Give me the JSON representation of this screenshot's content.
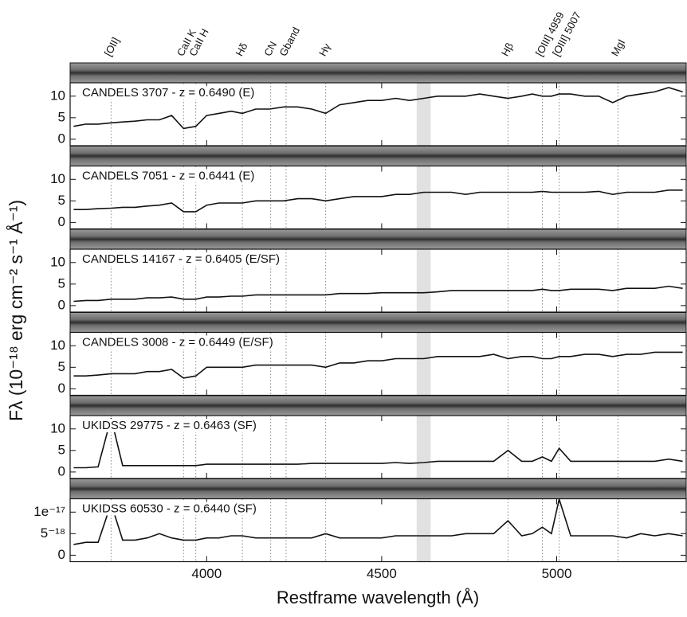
{
  "chart_data": {
    "type": "line",
    "xlabel": "Restframe wavelength (Å)",
    "ylabel": "Fλ (10⁻¹⁸ erg cm⁻² s⁻¹ Å⁻¹)",
    "xlim": [
      3610,
      5370
    ],
    "xticks": [
      4000,
      4500,
      5000
    ],
    "mask": [
      4600,
      4640
    ],
    "lines": [
      {
        "label": "[OII]",
        "wavelength": 3727
      },
      {
        "label": "CaII K",
        "wavelength": 3934
      },
      {
        "label": "CaII H",
        "wavelength": 3969
      },
      {
        "label": "Hδ",
        "wavelength": 4102
      },
      {
        "label": "CN",
        "wavelength": 4183
      },
      {
        "label": "Gband",
        "wavelength": 4227
      },
      {
        "label": "Hγ",
        "wavelength": 4340
      },
      {
        "label": "Hβ",
        "wavelength": 4861
      },
      {
        "label": "[OIII] 4959",
        "wavelength": 4959
      },
      {
        "label": "[OIII] 5007",
        "wavelength": 5007
      },
      {
        "label": "MgI",
        "wavelength": 5175
      }
    ],
    "x": [
      3620,
      3655,
      3690,
      3727,
      3760,
      3795,
      3830,
      3865,
      3900,
      3934,
      3969,
      4000,
      4035,
      4070,
      4102,
      4140,
      4180,
      4220,
      4260,
      4300,
      4340,
      4380,
      4420,
      4460,
      4500,
      4540,
      4580,
      4620,
      4660,
      4700,
      4740,
      4780,
      4820,
      4861,
      4900,
      4930,
      4959,
      4985,
      5007,
      5040,
      5080,
      5120,
      5160,
      5200,
      5240,
      5280,
      5320,
      5360
    ],
    "panels": [
      {
        "title": "CANDELS 3707 - z = 0.6490 (E)",
        "color": "#111111",
        "ylim": [
          -1.5,
          13.1
        ],
        "yticks": [
          0,
          5,
          10
        ],
        "values": [
          3,
          3.5,
          3.5,
          3.8,
          4,
          4.2,
          4.5,
          4.5,
          5.5,
          2.5,
          3,
          5.5,
          6,
          6.5,
          6,
          7,
          7,
          7.5,
          7.5,
          7,
          6,
          8,
          8.5,
          9,
          9,
          9.5,
          9,
          9.5,
          10,
          10,
          10,
          10.5,
          10,
          9.5,
          10,
          10.5,
          10,
          10,
          10.5,
          10.5,
          10,
          10,
          8.5,
          10,
          10.5,
          11,
          12,
          11
        ]
      },
      {
        "title": "CANDELS 7051 - z = 0.6441 (E)",
        "color": "#111111",
        "ylim": [
          -1.5,
          13.1
        ],
        "yticks": [
          0,
          5,
          10
        ],
        "values": [
          3,
          3,
          3.2,
          3.3,
          3.5,
          3.5,
          3.8,
          4,
          4.5,
          2.5,
          2.5,
          4,
          4.5,
          4.5,
          4.5,
          5,
          5,
          5,
          5.5,
          5.5,
          5,
          5.5,
          6,
          6,
          6,
          6.5,
          6.5,
          7,
          7,
          7,
          6.5,
          7,
          7,
          7,
          7,
          7,
          7.2,
          7,
          7,
          7,
          7,
          7.2,
          6.5,
          7,
          7,
          7,
          7.5,
          7.5
        ]
      },
      {
        "title": "CANDELS 14167 - z = 0.6405 (E/SF)",
        "color": "#111111",
        "ylim": [
          -1.5,
          13.1
        ],
        "yticks": [
          0,
          5,
          10
        ],
        "values": [
          1,
          1.2,
          1.2,
          1.5,
          1.5,
          1.5,
          1.8,
          1.8,
          2,
          1.5,
          1.5,
          2,
          2,
          2.2,
          2.2,
          2.5,
          2.5,
          2.5,
          2.5,
          2.5,
          2.5,
          2.8,
          2.8,
          2.8,
          3,
          3,
          3,
          3,
          3.2,
          3.5,
          3.5,
          3.5,
          3.5,
          3.5,
          3.5,
          3.5,
          3.8,
          3.5,
          3.5,
          3.8,
          3.8,
          3.8,
          3.5,
          4,
          4,
          4,
          4.5,
          4
        ]
      },
      {
        "title": "CANDELS 3008 - z = 0.6449 (E/SF)",
        "color": "#111111",
        "ylim": [
          -1.5,
          13.1
        ],
        "yticks": [
          0,
          5,
          10
        ],
        "values": [
          3,
          3,
          3.2,
          3.5,
          3.5,
          3.5,
          4,
          4,
          4.5,
          2.5,
          3,
          5,
          5,
          5,
          5,
          5.5,
          5.5,
          5.5,
          5.5,
          5.5,
          5,
          6,
          6,
          6.5,
          6.5,
          7,
          7,
          7,
          7.5,
          7.5,
          7.5,
          7.5,
          8,
          7,
          7.5,
          7.5,
          7,
          7,
          7.5,
          7.5,
          8,
          8,
          7.5,
          8,
          8,
          8.5,
          8.5,
          8.5
        ]
      },
      {
        "title": "UKIDSS 29775 - z = 0.6463 (SF)",
        "color": "#111111",
        "ylim": [
          -1.5,
          13.1
        ],
        "yticks": [
          0,
          5,
          10
        ],
        "values": [
          1,
          1,
          1.2,
          12.5,
          1.5,
          1.5,
          1.5,
          1.5,
          1.5,
          1.5,
          1.5,
          1.8,
          1.8,
          1.8,
          1.8,
          1.8,
          1.8,
          1.8,
          1.8,
          2,
          2,
          2,
          2,
          2,
          2,
          2.2,
          2,
          2.2,
          2.5,
          2.5,
          2.5,
          2.5,
          2.5,
          5,
          2.5,
          2.5,
          3.5,
          2.5,
          5.5,
          2.5,
          2.5,
          2.5,
          2.5,
          2.5,
          2.5,
          2.5,
          3,
          2.5
        ]
      },
      {
        "title": "UKIDSS 60530 - z = 0.6440 (SF)",
        "color": "#111111",
        "ylim": [
          -1.5e-18,
          1.31e-17
        ],
        "yticks": [
          0,
          {
            "value": 5e-18,
            "label": "5⁻¹⁸"
          },
          {
            "value": 1e-17,
            "label": "1e⁻¹⁷"
          }
        ],
        "values": [
          2.5e-18,
          3e-18,
          3e-18,
          1.2e-17,
          3.5e-18,
          3.5e-18,
          4e-18,
          5e-18,
          4e-18,
          3.5e-18,
          3.5e-18,
          4e-18,
          4e-18,
          4.5e-18,
          4.5e-18,
          4e-18,
          4e-18,
          4e-18,
          4e-18,
          4e-18,
          5e-18,
          4e-18,
          4e-18,
          4e-18,
          4e-18,
          4.5e-18,
          4.5e-18,
          4.5e-18,
          4.5e-18,
          4.5e-18,
          5e-18,
          5e-18,
          5e-18,
          8e-18,
          4.5e-18,
          5e-18,
          6.5e-18,
          5e-18,
          1.3e-17,
          4.5e-18,
          4.5e-18,
          4.5e-18,
          4.5e-18,
          4e-18,
          5e-18,
          4.5e-18,
          5e-18,
          4.5e-18
        ]
      }
    ]
  }
}
